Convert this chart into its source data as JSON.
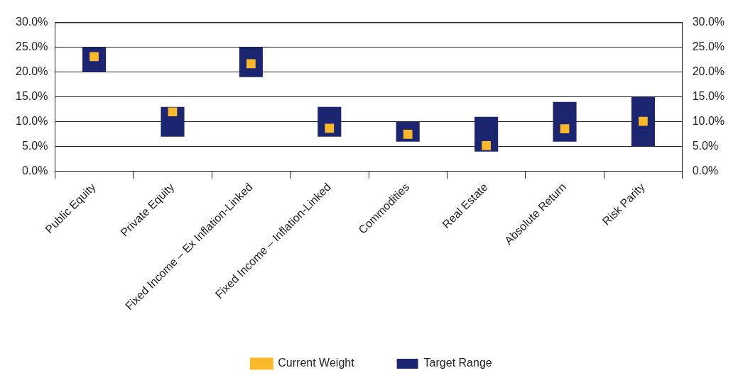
{
  "chart_data": {
    "type": "bar",
    "categories": [
      "Public Equity",
      "Private Equity",
      "Fixed Income – Ex Inflation-Linked",
      "Fixed Income – Inflation-Linked",
      "Commodities",
      "Real Estate",
      "Absolute Return",
      "Risk Parity"
    ],
    "series": [
      {
        "name": "Target Range",
        "color": "#1b2570",
        "base": [
          20,
          7,
          19,
          7,
          6,
          4,
          6,
          5
        ],
        "values": [
          5,
          6,
          6,
          6,
          4,
          7,
          8,
          10
        ]
      },
      {
        "name": "Current Weight",
        "type": "scatter",
        "color": "#fbb829",
        "marker": "square",
        "x": [
          "Public Equity",
          "Private Equity",
          "Fixed Income – Ex Inflation-Linked",
          "Fixed Income – Inflation-Linked",
          "Commodities",
          "Real Estate",
          "Absolute Return",
          "Risk Parity"
        ],
        "values": [
          23.1,
          12.0,
          21.7,
          8.7,
          7.5,
          5.2,
          8.6,
          10.1
        ]
      }
    ],
    "ylim": [
      0,
      30
    ],
    "yticks": [
      {
        "value": 0,
        "label": "0.0%"
      },
      {
        "value": 5,
        "label": "5.0%"
      },
      {
        "value": 10,
        "label": "10.0%"
      },
      {
        "value": 15,
        "label": "15.0%"
      },
      {
        "value": 20,
        "label": "20.0%"
      },
      {
        "value": 25,
        "label": "25.0%"
      },
      {
        "value": 30,
        "label": "30.0%"
      }
    ],
    "y2lim": [
      0,
      30
    ],
    "y2ticks": [
      {
        "value": 0,
        "label": "0.0%"
      },
      {
        "value": 5,
        "label": "5.0%"
      },
      {
        "value": 10,
        "label": "10.0%"
      },
      {
        "value": 15,
        "label": "15.0%"
      },
      {
        "value": 20,
        "label": "20.0%"
      },
      {
        "value": 25,
        "label": "25.0%"
      },
      {
        "value": 30,
        "label": "30.0%"
      }
    ],
    "grid": "y",
    "legend": "bottom"
  }
}
